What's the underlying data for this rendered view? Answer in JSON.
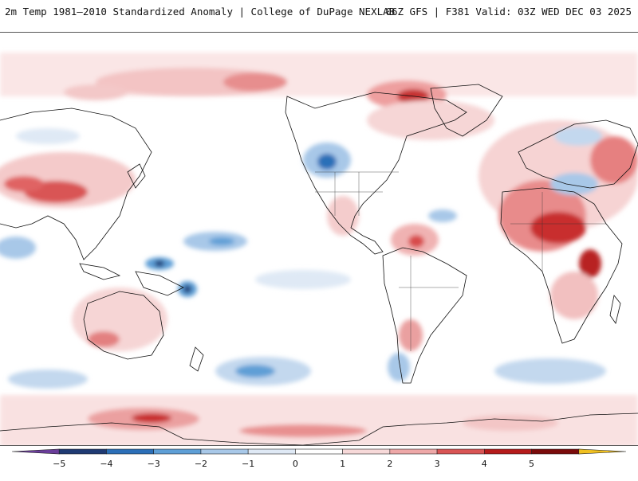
{
  "header": {
    "title": "2m Temp 1981–2010 Standardized Anomaly | College of DuPage NEXLAB",
    "run_info": "06Z GFS | F381 Valid: 03Z WED DEC 03 2025"
  },
  "map": {
    "projection": "equirectangular",
    "center_longitude": -130
  },
  "colorbar": {
    "ticks": [
      "−5",
      "−4",
      "−3",
      "−2",
      "−1",
      "0",
      "1",
      "2",
      "3",
      "4",
      "5"
    ],
    "colors": [
      "#6a3d9a",
      "#1f3a73",
      "#2c6fb8",
      "#5e9fd6",
      "#a8c8e8",
      "#dfe9f5",
      "#ffffff",
      "#f7d9d9",
      "#eea8a8",
      "#d95555",
      "#b51b1b",
      "#7a0b0b",
      "#f0c020"
    ]
  }
}
